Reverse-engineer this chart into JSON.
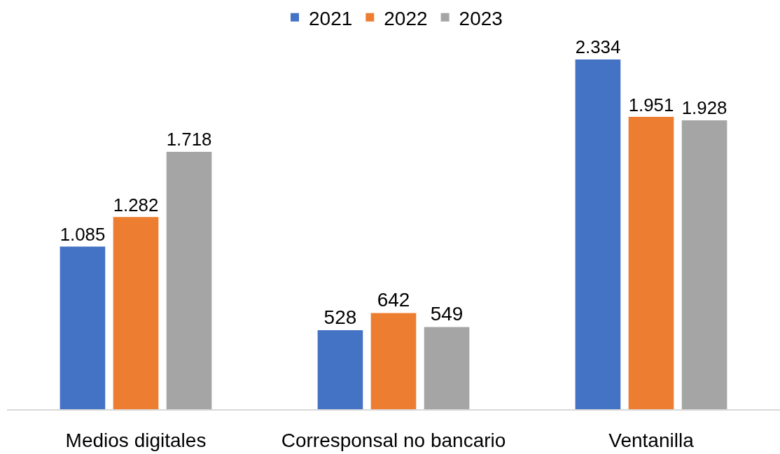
{
  "chart_data": {
    "type": "bar",
    "categories": [
      "Medios digitales",
      "Corresponsal no bancario",
      "Ventanilla"
    ],
    "series": [
      {
        "name": "2021",
        "color": "#4472c4",
        "values": [
          1085,
          528,
          2334
        ],
        "value_labels": [
          "1.085",
          "528",
          "2.334"
        ]
      },
      {
        "name": "2022",
        "color": "#ed7d31",
        "values": [
          1282,
          642,
          1951
        ],
        "value_labels": [
          "1.282",
          "642",
          "1.951"
        ]
      },
      {
        "name": "2023",
        "color": "#a5a5a5",
        "values": [
          1718,
          549,
          1928
        ],
        "value_labels": [
          "1.718",
          "549",
          "1.928"
        ]
      }
    ],
    "grid": false,
    "legend": "top"
  }
}
